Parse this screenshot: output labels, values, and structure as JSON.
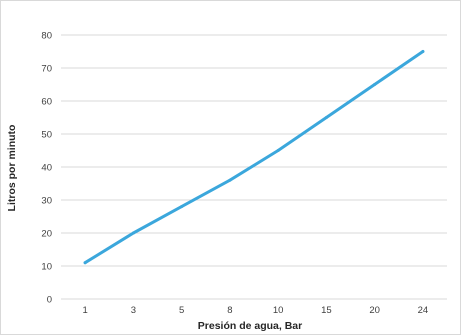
{
  "chart_data": {
    "type": "line",
    "title": "",
    "xlabel": "Presión de agua, Bar",
    "ylabel": "Litros por minuto",
    "categories": [
      "1",
      "3",
      "5",
      "8",
      "10",
      "15",
      "20",
      "24"
    ],
    "series": [
      {
        "values": [
          11,
          20,
          28,
          36,
          45,
          55,
          65,
          75
        ]
      }
    ],
    "ylim": [
      0,
      80
    ],
    "yticks": [
      "0",
      "10",
      "20",
      "30",
      "40",
      "50",
      "60",
      "70",
      "80"
    ],
    "grid": "horizontal",
    "legend": "none",
    "line_color": "#3ba7dc",
    "grid_color": "#d9d9d9"
  }
}
